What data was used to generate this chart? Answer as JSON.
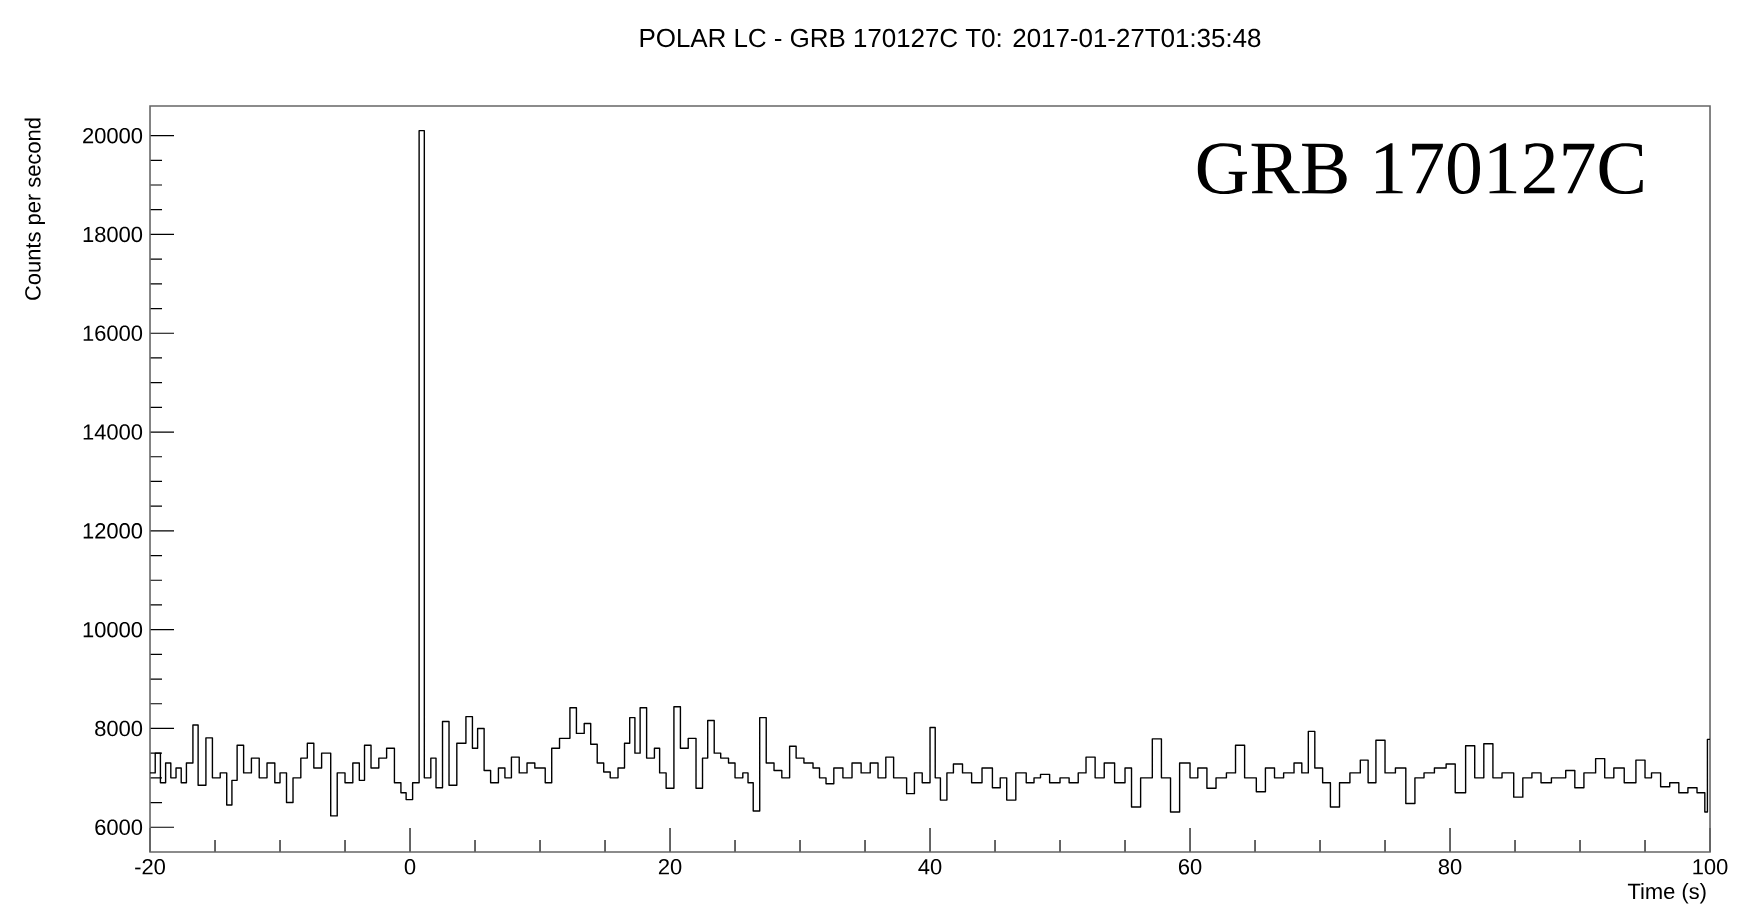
{
  "chart_data": {
    "type": "step",
    "title": "POLAR LC - GRB 170127C  T0: 2017-01-27T01:35:48",
    "xlabel": "Time (s)",
    "ylabel": "Counts per second",
    "annotations": [
      "GRB 170127C"
    ],
    "xlim": [
      -20,
      100
    ],
    "ylim": [
      5500,
      20600
    ],
    "xticks": [
      -20,
      0,
      20,
      40,
      60,
      80,
      100
    ],
    "yticks": [
      6000,
      8000,
      10000,
      12000,
      14000,
      16000,
      18000,
      20000
    ],
    "grid": false,
    "marker": "none",
    "line_style": "solid",
    "series": [
      {
        "color": "#000000",
        "x": [
          -20,
          -19.6,
          -19.2,
          -18.8,
          -18.4,
          -18,
          -17.6,
          -17.2,
          -16.7,
          -16.3,
          -15.7,
          -15.2,
          -14.6,
          -14.1,
          -13.7,
          -13.3,
          -12.8,
          -12.2,
          -11.6,
          -11,
          -10.4,
          -10,
          -9.5,
          -9,
          -8.4,
          -7.9,
          -7.4,
          -6.8,
          -6.1,
          -5.6,
          -5,
          -4.4,
          -3.9,
          -3.5,
          -3,
          -2.4,
          -1.8,
          -1.2,
          -0.7,
          -0.3,
          0.2,
          0.7,
          1.1,
          1.6,
          2,
          2.5,
          3,
          3.6,
          4.3,
          4.8,
          5.2,
          5.7,
          6.2,
          6.8,
          7.3,
          7.8,
          8.4,
          9,
          9.6,
          10.4,
          10.9,
          11.5,
          12.3,
          12.8,
          13.4,
          13.9,
          14.4,
          14.9,
          15.4,
          16,
          16.5,
          16.9,
          17.3,
          17.7,
          18.2,
          18.8,
          19.2,
          19.7,
          20.3,
          20.8,
          21.4,
          22,
          22.5,
          22.9,
          23.4,
          23.9,
          24.5,
          25,
          25.6,
          26,
          26.4,
          26.9,
          27.4,
          28,
          28.6,
          29.2,
          29.7,
          30.3,
          31,
          31.5,
          32,
          32.6,
          33.3,
          34,
          34.7,
          35.4,
          36,
          36.6,
          37.2,
          38.2,
          38.8,
          39.4,
          40,
          40.4,
          40.8,
          41.3,
          41.8,
          42.5,
          43.2,
          44,
          44.8,
          45.4,
          45.9,
          46.6,
          47.4,
          48,
          48.5,
          49.2,
          50,
          50.7,
          51.4,
          52,
          52.7,
          53.4,
          54.2,
          55,
          55.5,
          56.2,
          57.1,
          57.8,
          58.5,
          59.2,
          60,
          60.6,
          61.3,
          62,
          62.8,
          63.5,
          64.2,
          65.1,
          65.8,
          66.5,
          67.2,
          68,
          68.6,
          69.1,
          69.6,
          70.2,
          70.8,
          71.5,
          72.3,
          73.1,
          73.7,
          74.3,
          75,
          75.8,
          76.6,
          77.3,
          78,
          78.8,
          79.7,
          80.4,
          81.2,
          81.9,
          82.6,
          83.3,
          84,
          84.9,
          85.6,
          86.3,
          87,
          87.8,
          88.9,
          89.6,
          90.3,
          91.2,
          91.9,
          92.6,
          93.4,
          94.3,
          95,
          95.5,
          96.2,
          96.9,
          97.6,
          98.3,
          99,
          99.6,
          99.8,
          100
        ],
        "values": [
          7100,
          7500,
          6900,
          7300,
          7000,
          7200,
          6900,
          7300,
          8070,
          6850,
          7810,
          7000,
          7100,
          6450,
          6950,
          7660,
          7100,
          7400,
          7000,
          7300,
          6900,
          7100,
          6500,
          7000,
          7400,
          7700,
          7200,
          7500,
          6230,
          7100,
          6900,
          7300,
          6950,
          7660,
          7200,
          7400,
          7600,
          6900,
          6700,
          6560,
          6900,
          20100,
          7000,
          7400,
          6800,
          8140,
          6850,
          7700,
          8240,
          7600,
          8000,
          7150,
          6900,
          7200,
          7000,
          7420,
          7100,
          7300,
          7200,
          6900,
          7600,
          7800,
          8420,
          7900,
          8100,
          7680,
          7300,
          7120,
          7000,
          7200,
          7700,
          8220,
          7500,
          8420,
          7400,
          7600,
          7100,
          6790,
          8440,
          7600,
          7800,
          6790,
          7400,
          8160,
          7500,
          7400,
          7300,
          7000,
          7100,
          6900,
          6330,
          8220,
          7300,
          7150,
          7000,
          7640,
          7400,
          7300,
          7200,
          7000,
          6880,
          7200,
          7000,
          7300,
          7100,
          7300,
          7000,
          7420,
          7000,
          6680,
          7100,
          6900,
          8020,
          7000,
          6550,
          7100,
          7280,
          7100,
          6900,
          7200,
          6800,
          7000,
          6550,
          7100,
          6900,
          7000,
          7070,
          6900,
          7000,
          6900,
          7100,
          7420,
          7000,
          7300,
          6900,
          7200,
          6410,
          7000,
          7790,
          7000,
          6310,
          7300,
          7000,
          7200,
          6790,
          7000,
          7100,
          7660,
          7000,
          6720,
          7200,
          7000,
          7100,
          7300,
          7100,
          7940,
          7200,
          6900,
          6410,
          6900,
          7100,
          7360,
          6900,
          7760,
          7100,
          7200,
          6480,
          7000,
          7100,
          7200,
          7280,
          6700,
          7650,
          7000,
          7690,
          7000,
          7100,
          6610,
          7000,
          7100,
          6900,
          7000,
          7150,
          6800,
          7100,
          7390,
          7000,
          7200,
          6900,
          7360,
          7000,
          7100,
          6820,
          6900,
          6700,
          6800,
          6700,
          6310,
          7780,
          7780
        ]
      }
    ]
  }
}
